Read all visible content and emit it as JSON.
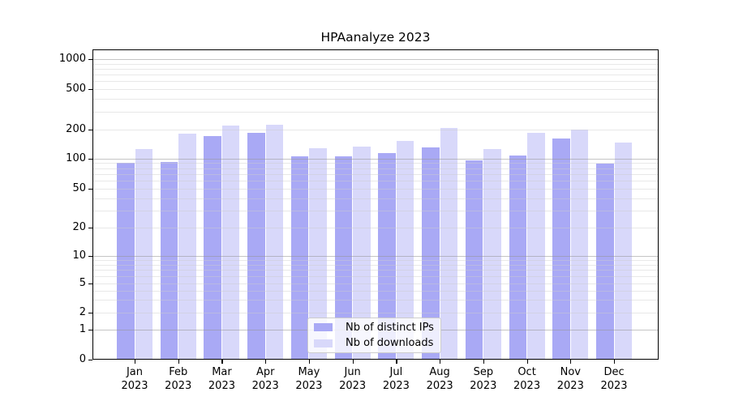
{
  "title": "HPAanalyze 2023",
  "chart_data": {
    "type": "bar",
    "title": "HPAanalyze 2023",
    "y_axis": {
      "scale": "symlog",
      "tick_values": [
        0,
        1,
        2,
        5,
        10,
        20,
        50,
        100,
        200,
        500,
        1000
      ],
      "tick_labels": [
        "0",
        "1",
        "2",
        "5",
        "10",
        "20",
        "50",
        "100",
        "200",
        "500",
        "1000"
      ],
      "range": [
        0,
        1000
      ],
      "major_decades": [
        1,
        10,
        100,
        1000
      ],
      "minor_gridline_values": [
        2,
        3,
        4,
        5,
        6,
        7,
        8,
        9,
        20,
        30,
        40,
        50,
        60,
        70,
        80,
        90,
        200,
        300,
        400,
        500,
        600,
        700,
        800,
        900
      ]
    },
    "x_axis": {
      "months": [
        "Jan",
        "Feb",
        "Mar",
        "Apr",
        "May",
        "Jun",
        "Jul",
        "Aug",
        "Sep",
        "Oct",
        "Nov",
        "Dec"
      ],
      "year": "2023"
    },
    "categories": [
      "Jan 2023",
      "Feb 2023",
      "Mar 2023",
      "Apr 2023",
      "May 2023",
      "Jun 2023",
      "Jul 2023",
      "Aug 2023",
      "Sep 2023",
      "Oct 2023",
      "Nov 2023",
      "Dec 2023"
    ],
    "series": [
      {
        "name": "Nb of distinct IPs",
        "color": "#a9a9f5",
        "values": [
          90,
          92,
          170,
          183,
          104,
          104,
          113,
          130,
          96,
          107,
          160,
          88
        ]
      },
      {
        "name": "Nb of downloads",
        "color": "#d8d8fa",
        "values": [
          124,
          181,
          218,
          222,
          128,
          133,
          150,
          205,
          124,
          183,
          200,
          147
        ]
      }
    ],
    "legend_position": "lower center",
    "grid": {
      "major_color": "rgba(150,150,150,0.55)",
      "minor_color": "rgba(205,205,205,0.45)"
    }
  }
}
